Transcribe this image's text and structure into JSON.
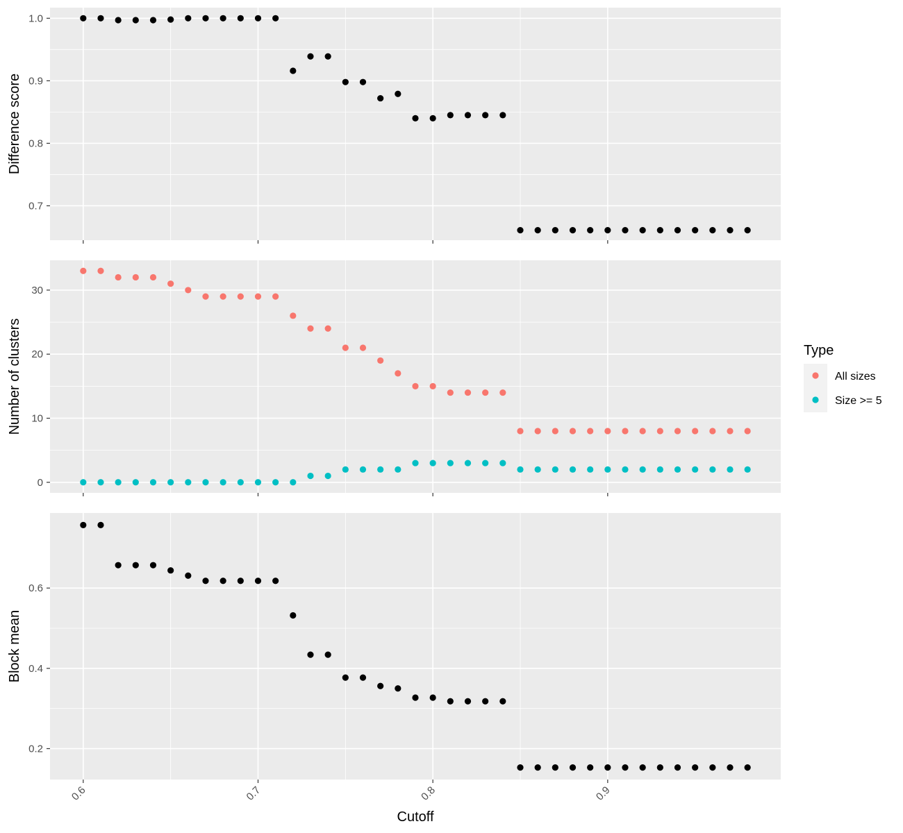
{
  "chart_data": {
    "type": "scatter",
    "x_label": "Cutoff",
    "x_lim": [
      0.581,
      0.999
    ],
    "x_ticks": [
      0.6,
      0.7,
      0.8,
      0.9
    ],
    "x_tick_labels": [
      "0.6",
      "0.7",
      "0.8",
      "0.9"
    ],
    "x": [
      0.6,
      0.61,
      0.62,
      0.63,
      0.64,
      0.65,
      0.66,
      0.67,
      0.68,
      0.69,
      0.7,
      0.71,
      0.72,
      0.73,
      0.74,
      0.75,
      0.76,
      0.77,
      0.78,
      0.79,
      0.8,
      0.81,
      0.82,
      0.83,
      0.84,
      0.85,
      0.86,
      0.87,
      0.88,
      0.89,
      0.9,
      0.91,
      0.92,
      0.93,
      0.94,
      0.95,
      0.96,
      0.97,
      0.98
    ],
    "grid": true,
    "legend": {
      "title": "Type",
      "position": "right",
      "entries": [
        {
          "label": "All sizes",
          "color": "#F8766D"
        },
        {
          "label": "Size >= 5",
          "color": "#00BFC4"
        }
      ]
    },
    "panels": [
      {
        "ylabel": "Difference score",
        "ylim": [
          0.645,
          1.017
        ],
        "y_ticks": [
          0.7,
          0.8,
          0.9,
          1.0
        ],
        "y_tick_labels": [
          "0.7",
          "0.8",
          "0.9",
          "1.0"
        ],
        "series": [
          {
            "color": "#000000",
            "values": [
              1.0,
              1.0,
              0.997,
              0.997,
              0.997,
              0.998,
              1.0,
              1.0,
              1.0,
              1.0,
              1.0,
              1.0,
              0.916,
              0.939,
              0.939,
              0.898,
              0.898,
              0.872,
              0.879,
              0.84,
              0.84,
              0.845,
              0.845,
              0.845,
              0.845,
              0.661,
              0.661,
              0.661,
              0.661,
              0.661,
              0.661,
              0.661,
              0.661,
              0.661,
              0.661,
              0.661,
              0.661,
              0.661,
              0.661
            ]
          }
        ]
      },
      {
        "ylabel": "Number of clusters",
        "ylim": [
          -1.65,
          34.65
        ],
        "y_ticks": [
          0,
          10,
          20,
          30
        ],
        "y_tick_labels": [
          "0",
          "10",
          "20",
          "30"
        ],
        "series": [
          {
            "name": "All sizes",
            "color": "#F8766D",
            "values": [
              33,
              33,
              32,
              32,
              32,
              31,
              30,
              29,
              29,
              29,
              29,
              29,
              26,
              24,
              24,
              21,
              21,
              19,
              17,
              15,
              15,
              14,
              14,
              14,
              14,
              8,
              8,
              8,
              8,
              8,
              8,
              8,
              8,
              8,
              8,
              8,
              8,
              8,
              8
            ]
          },
          {
            "name": "Size >= 5",
            "color": "#00BFC4",
            "values": [
              0,
              0,
              0,
              0,
              0,
              0,
              0,
              0,
              0,
              0,
              0,
              0,
              0,
              1,
              1,
              2,
              2,
              2,
              2,
              3,
              3,
              3,
              3,
              3,
              3,
              2,
              2,
              2,
              2,
              2,
              2,
              2,
              2,
              2,
              2,
              2,
              2,
              2,
              2
            ]
          }
        ]
      },
      {
        "ylabel": "Block mean",
        "ylim": [
          0.123,
          0.787
        ],
        "y_ticks": [
          0.2,
          0.4,
          0.6
        ],
        "y_tick_labels": [
          "0.2",
          "0.4",
          "0.6"
        ],
        "series": [
          {
            "color": "#000000",
            "values": [
              0.757,
              0.757,
              0.657,
              0.657,
              0.657,
              0.644,
              0.631,
              0.618,
              0.618,
              0.618,
              0.618,
              0.618,
              0.532,
              0.434,
              0.434,
              0.377,
              0.377,
              0.356,
              0.35,
              0.327,
              0.327,
              0.318,
              0.318,
              0.318,
              0.318,
              0.153,
              0.153,
              0.153,
              0.153,
              0.153,
              0.153,
              0.153,
              0.153,
              0.153,
              0.153,
              0.153,
              0.153,
              0.153,
              0.153
            ]
          }
        ]
      }
    ]
  }
}
